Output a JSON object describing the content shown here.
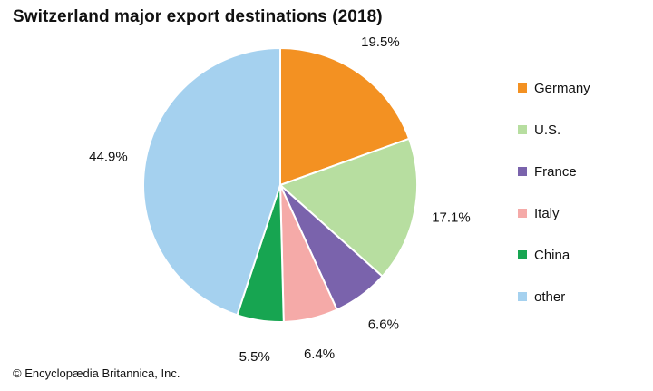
{
  "chart_data": {
    "type": "pie",
    "title": "Switzerland major export destinations (2018)",
    "start_angle_deg": 0,
    "direction": "clockwise",
    "categories": [
      "Germany",
      "U.S.",
      "France",
      "Italy",
      "China",
      "other"
    ],
    "values": [
      19.5,
      17.1,
      6.6,
      6.4,
      5.5,
      44.9
    ],
    "value_labels": [
      "19.5%",
      "17.1%",
      "6.6%",
      "6.4%",
      "5.5%",
      "44.9%"
    ],
    "colors": [
      "#f39122",
      "#b7dea0",
      "#7a63ac",
      "#f5aaa8",
      "#17a551",
      "#a5d1ef"
    ],
    "legend_position": "right"
  },
  "credit": "© Encyclopædia Britannica, Inc."
}
